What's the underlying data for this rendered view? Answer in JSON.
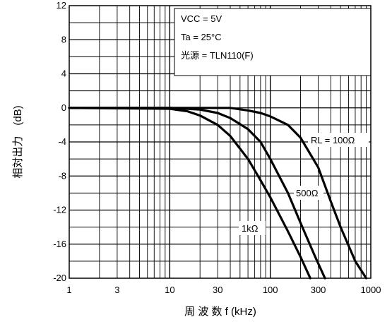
{
  "chart_data": {
    "type": "line",
    "xlabel": "周 波 数  f  (kHz)",
    "ylabel": "相対出力　(dB)",
    "x_scale": "log",
    "xlim": [
      1,
      1000
    ],
    "ylim": [
      -20,
      12
    ],
    "grid": true,
    "x_ticks": [
      1,
      3,
      10,
      30,
      100,
      300,
      1000
    ],
    "x_tick_labels": [
      "1",
      "3",
      "10",
      "30",
      "100",
      "300",
      "1000"
    ],
    "y_ticks": [
      12,
      8,
      4,
      0,
      -4,
      -8,
      -12,
      -16,
      -20
    ],
    "y_tick_labels": [
      "12",
      "8",
      "4",
      "0",
      "-4",
      "-8",
      "-12",
      "-16",
      "-20"
    ],
    "legend": {
      "placement": "top-right",
      "lines": [
        "VCC = 5V",
        "Ta = 25°C",
        "光源  = TLN110(F)"
      ]
    },
    "series": [
      {
        "name": "RL = 100Ω",
        "points": [
          [
            1,
            0
          ],
          [
            10,
            0
          ],
          [
            20,
            0
          ],
          [
            40,
            0
          ],
          [
            60,
            -0.3
          ],
          [
            80,
            -0.6
          ],
          [
            100,
            -1
          ],
          [
            150,
            -2
          ],
          [
            200,
            -3.5
          ],
          [
            300,
            -7
          ],
          [
            400,
            -11
          ],
          [
            500,
            -14
          ],
          [
            700,
            -18
          ],
          [
            900,
            -20
          ]
        ]
      },
      {
        "name": "500Ω",
        "points": [
          [
            1,
            0
          ],
          [
            10,
            0
          ],
          [
            20,
            -0.2
          ],
          [
            30,
            -0.6
          ],
          [
            40,
            -1.2
          ],
          [
            60,
            -2.5
          ],
          [
            80,
            -4
          ],
          [
            100,
            -6
          ],
          [
            150,
            -10
          ],
          [
            200,
            -13.5
          ],
          [
            280,
            -17.5
          ],
          [
            350,
            -20
          ]
        ]
      },
      {
        "name": "1kΩ",
        "points": [
          [
            1,
            0
          ],
          [
            10,
            -0.1
          ],
          [
            15,
            -0.4
          ],
          [
            20,
            -0.9
          ],
          [
            30,
            -2
          ],
          [
            40,
            -3.3
          ],
          [
            60,
            -6
          ],
          [
            80,
            -8.5
          ],
          [
            100,
            -10.5
          ],
          [
            150,
            -14.5
          ],
          [
            200,
            -17.5
          ],
          [
            250,
            -20
          ]
        ]
      }
    ],
    "series_labels": [
      "RL = 100Ω",
      "500Ω",
      "1kΩ"
    ]
  }
}
